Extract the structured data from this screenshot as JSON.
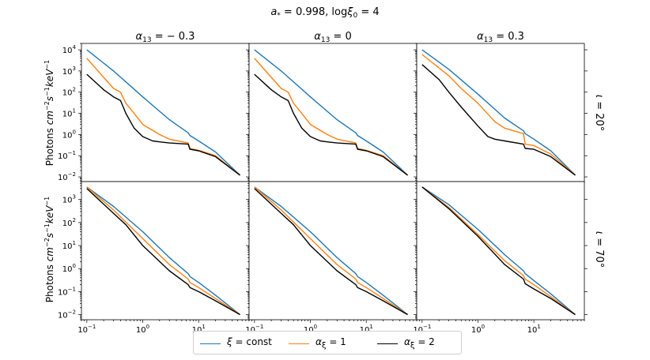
{
  "chart_data": {
    "type": "line",
    "title": "a* = 0.998, logξ0 = 4",
    "title_parts": {
      "a_sym": "a",
      "a_sub": "*",
      "a_val": " = 0.998, log",
      "xi": "ξ",
      "xi_sub": "0",
      "xi_val": " = 4"
    },
    "ylabel": "Photons cm^-2 s^-1 keV^-1",
    "ylabel_parts": {
      "pre": "Photons ",
      "u1": "cm",
      "s1": "−2",
      "u2": "s",
      "s2": "−1",
      "u3": "keV",
      "s3": "−1"
    },
    "xscale": "log",
    "yscale": "log",
    "xlim": [
      0.08,
      80
    ],
    "xticks": [
      0.1,
      1,
      10
    ],
    "xtick_labels": [
      {
        "base": "10",
        "exp": "−1"
      },
      {
        "base": "10",
        "exp": "0"
      },
      {
        "base": "10",
        "exp": "1"
      }
    ],
    "ylim_top": [
      0.006,
      20000
    ],
    "ylim_bottom": [
      0.006,
      6000
    ],
    "yticks_top": [
      {
        "v": 0.01,
        "base": "10",
        "exp": "−2"
      },
      {
        "v": 0.1,
        "base": "10",
        "exp": "−1"
      },
      {
        "v": 1,
        "base": "10",
        "exp": "0"
      },
      {
        "v": 10,
        "base": "10",
        "exp": "1"
      },
      {
        "v": 100,
        "base": "10",
        "exp": "2"
      },
      {
        "v": 1000,
        "base": "10",
        "exp": "3"
      },
      {
        "v": 10000,
        "base": "10",
        "exp": "4"
      }
    ],
    "yticks_bottom": [
      {
        "v": 0.01,
        "base": "10",
        "exp": "−2"
      },
      {
        "v": 0.1,
        "base": "10",
        "exp": "−1"
      },
      {
        "v": 1,
        "base": "10",
        "exp": "0"
      },
      {
        "v": 10,
        "base": "10",
        "exp": "1"
      },
      {
        "v": 100,
        "base": "10",
        "exp": "2"
      },
      {
        "v": 1000,
        "base": "10",
        "exp": "3"
      }
    ],
    "columns": [
      {
        "sym": "α",
        "sub": "13",
        "val": " = − 0.3"
      },
      {
        "sym": "α",
        "sub": "13",
        "val": " = 0"
      },
      {
        "sym": "α",
        "sub": "13",
        "val": " = 0.3"
      }
    ],
    "rows": [
      {
        "sym": "ι",
        "val": " = 20°"
      },
      {
        "sym": "ι",
        "val": " = 70°"
      }
    ],
    "series_style": [
      {
        "name": "ξ = const",
        "color": "#1f77b4"
      },
      {
        "name": "αξ = 1",
        "color": "#ff7f0e"
      },
      {
        "name": "αξ = 2",
        "color": "#000000"
      }
    ],
    "panels": [
      {
        "row": 0,
        "col": 0,
        "series": [
          {
            "name": "ξ = const",
            "x": [
              0.1,
              0.3,
              1,
              3,
              6.5,
              7,
              10,
              20,
              55
            ],
            "y": [
              10000,
              1000,
              60,
              5,
              1.2,
              0.9,
              0.5,
              0.15,
              0.012
            ]
          },
          {
            "name": "αξ = 1",
            "x": [
              0.1,
              0.2,
              0.3,
              0.4,
              0.5,
              0.7,
              1,
              2,
              3,
              6.5,
              7,
              10,
              20,
              55
            ],
            "y": [
              4000,
              500,
              150,
              100,
              30,
              10,
              3,
              1,
              0.6,
              0.4,
              0.22,
              0.18,
              0.1,
              0.012
            ]
          },
          {
            "name": "αξ = 2",
            "x": [
              0.1,
              0.2,
              0.3,
              0.4,
              0.5,
              0.7,
              1,
              1.5,
              2,
              3,
              6.5,
              7,
              10,
              20,
              55
            ],
            "y": [
              700,
              130,
              60,
              40,
              10,
              2,
              0.8,
              0.5,
              0.45,
              0.4,
              0.35,
              0.2,
              0.17,
              0.09,
              0.012
            ]
          }
        ]
      },
      {
        "row": 0,
        "col": 1,
        "series": [
          {
            "name": "ξ = const",
            "x": [
              0.1,
              0.3,
              1,
              3,
              6.5,
              7,
              10,
              20,
              55
            ],
            "y": [
              10000,
              1000,
              60,
              5,
              1.2,
              0.9,
              0.5,
              0.15,
              0.012
            ]
          },
          {
            "name": "αξ = 1",
            "x": [
              0.1,
              0.2,
              0.3,
              0.4,
              0.5,
              0.7,
              1,
              2,
              3,
              6.5,
              7,
              10,
              20,
              55
            ],
            "y": [
              4000,
              500,
              150,
              100,
              30,
              10,
              3,
              1,
              0.6,
              0.4,
              0.22,
              0.18,
              0.1,
              0.012
            ]
          },
          {
            "name": "αξ = 2",
            "x": [
              0.1,
              0.2,
              0.3,
              0.4,
              0.5,
              0.7,
              1,
              1.5,
              2,
              3,
              6.5,
              7,
              10,
              20,
              55
            ],
            "y": [
              700,
              130,
              60,
              40,
              10,
              2,
              0.8,
              0.5,
              0.45,
              0.4,
              0.35,
              0.2,
              0.17,
              0.09,
              0.012
            ]
          }
        ]
      },
      {
        "row": 0,
        "col": 2,
        "series": [
          {
            "name": "ξ = const",
            "x": [
              0.1,
              0.3,
              1,
              3,
              6.5,
              7,
              10,
              20,
              55
            ],
            "y": [
              10000,
              1200,
              80,
              6,
              1.5,
              1.1,
              0.6,
              0.17,
              0.012
            ]
          },
          {
            "name": "αξ = 1",
            "x": [
              0.1,
              0.3,
              0.5,
              1,
              2,
              3,
              6.5,
              7,
              10,
              20,
              55
            ],
            "y": [
              6000,
              600,
              150,
              30,
              4,
              2,
              1.1,
              0.35,
              0.3,
              0.12,
              0.012
            ]
          },
          {
            "name": "αξ = 2",
            "x": [
              0.1,
              0.2,
              0.3,
              0.5,
              1,
              1.5,
              2,
              3,
              6.5,
              7,
              10,
              20,
              55
            ],
            "y": [
              2000,
              400,
              100,
              20,
              2.5,
              0.8,
              0.6,
              0.5,
              0.35,
              0.22,
              0.2,
              0.09,
              0.012
            ]
          }
        ]
      },
      {
        "row": 1,
        "col": 0,
        "series": [
          {
            "name": "ξ = const",
            "x": [
              0.1,
              0.3,
              1,
              3,
              6.5,
              7,
              10,
              20,
              55
            ],
            "y": [
              3500,
              500,
              40,
              3,
              0.6,
              0.45,
              0.25,
              0.07,
              0.01
            ]
          },
          {
            "name": "αξ = 1",
            "x": [
              0.1,
              0.3,
              1,
              3,
              6.5,
              7,
              10,
              20,
              55
            ],
            "y": [
              3500,
              350,
              20,
              1.5,
              0.35,
              0.25,
              0.15,
              0.05,
              0.01
            ]
          },
          {
            "name": "αξ = 2",
            "x": [
              0.1,
              0.3,
              0.5,
              1,
              3,
              6.5,
              7,
              10,
              20,
              55
            ],
            "y": [
              3000,
              250,
              80,
              10,
              0.8,
              0.2,
              0.15,
              0.1,
              0.04,
              0.01
            ]
          }
        ]
      },
      {
        "row": 1,
        "col": 1,
        "series": [
          {
            "name": "ξ = const",
            "x": [
              0.1,
              0.3,
              1,
              3,
              6.5,
              7,
              10,
              20,
              55
            ],
            "y": [
              3500,
              500,
              40,
              3,
              0.6,
              0.45,
              0.25,
              0.07,
              0.01
            ]
          },
          {
            "name": "αξ = 1",
            "x": [
              0.1,
              0.3,
              1,
              3,
              6.5,
              7,
              10,
              20,
              55
            ],
            "y": [
              3500,
              350,
              20,
              1.5,
              0.35,
              0.25,
              0.15,
              0.05,
              0.01
            ]
          },
          {
            "name": "αξ = 2",
            "x": [
              0.1,
              0.3,
              0.5,
              1,
              3,
              6.5,
              7,
              10,
              20,
              55
            ],
            "y": [
              3000,
              250,
              80,
              10,
              0.8,
              0.2,
              0.15,
              0.1,
              0.04,
              0.01
            ]
          }
        ]
      },
      {
        "row": 1,
        "col": 2,
        "series": [
          {
            "name": "ξ = const",
            "x": [
              0.1,
              0.3,
              1,
              3,
              6.5,
              7,
              10,
              20,
              55
            ],
            "y": [
              3500,
              600,
              50,
              4,
              0.8,
              0.6,
              0.3,
              0.08,
              0.01
            ]
          },
          {
            "name": "αξ = 1",
            "x": [
              0.1,
              0.3,
              1,
              3,
              6.5,
              7,
              10,
              20,
              55
            ],
            "y": [
              3500,
              450,
              30,
              2.2,
              0.5,
              0.35,
              0.2,
              0.06,
              0.01
            ]
          },
          {
            "name": "αξ = 2",
            "x": [
              0.1,
              0.3,
              1,
              3,
              6.5,
              7,
              10,
              20,
              55
            ],
            "y": [
              3500,
              400,
              25,
              1.5,
              0.35,
              0.22,
              0.13,
              0.05,
              0.01
            ]
          }
        ]
      }
    ]
  },
  "legend": {
    "items": [
      {
        "label": "ξ = const",
        "sym": "ξ",
        "sub": "",
        "val": " = const",
        "color": "#1f77b4"
      },
      {
        "label": "αξ = 1",
        "sym": "α",
        "sub": "ξ",
        "val": " = 1",
        "color": "#ff7f0e"
      },
      {
        "label": "αξ = 2",
        "sym": "α",
        "sub": "ξ",
        "val": " = 2",
        "color": "#000000"
      }
    ]
  }
}
